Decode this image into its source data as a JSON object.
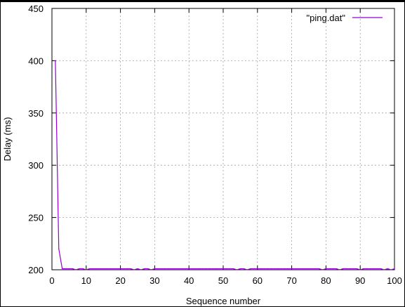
{
  "chart_data": {
    "type": "line",
    "title": "",
    "xlabel": "Sequence number",
    "ylabel": "Delay (ms)",
    "xlim": [
      0,
      100
    ],
    "ylim": [
      200,
      450
    ],
    "xticks": [
      0,
      10,
      20,
      30,
      40,
      50,
      60,
      70,
      80,
      90,
      100
    ],
    "yticks": [
      200,
      250,
      300,
      350,
      400,
      450
    ],
    "grid": true,
    "legend_position": "top-right",
    "colors": {
      "series": "#9400d3",
      "grid": "#a0a0a0",
      "axes": "#000000"
    },
    "series": [
      {
        "name": "\"ping.dat\"",
        "x": [
          1,
          2,
          3,
          4,
          5,
          6,
          7,
          8,
          9,
          10,
          11,
          12,
          13,
          14,
          15,
          16,
          17,
          18,
          19,
          20,
          21,
          22,
          23,
          24,
          25,
          26,
          27,
          28,
          29,
          30,
          31,
          32,
          33,
          34,
          35,
          36,
          37,
          38,
          39,
          40,
          41,
          42,
          43,
          44,
          45,
          46,
          47,
          48,
          49,
          50,
          51,
          52,
          53,
          54,
          55,
          56,
          57,
          58,
          59,
          60,
          61,
          62,
          63,
          64,
          65,
          66,
          67,
          68,
          69,
          70,
          71,
          72,
          73,
          74,
          75,
          76,
          77,
          78,
          79,
          80,
          81,
          82,
          83,
          84,
          85,
          86,
          87,
          88,
          89,
          90,
          91,
          92,
          93,
          94,
          95,
          96,
          97,
          98,
          99,
          100
        ],
        "y": [
          400,
          220,
          201,
          201,
          201,
          201,
          200,
          201,
          201,
          200,
          201,
          201,
          201,
          201,
          201,
          201,
          201,
          201,
          201,
          201,
          201,
          201,
          201,
          200,
          201,
          200,
          201,
          201,
          200,
          201,
          201,
          201,
          201,
          201,
          201,
          201,
          201,
          201,
          201,
          201,
          201,
          201,
          201,
          201,
          201,
          201,
          201,
          201,
          201,
          201,
          201,
          201,
          201,
          200,
          201,
          201,
          200,
          201,
          201,
          201,
          201,
          201,
          201,
          201,
          201,
          201,
          201,
          201,
          201,
          201,
          201,
          201,
          201,
          201,
          201,
          201,
          201,
          201,
          200,
          201,
          201,
          201,
          201,
          200,
          201,
          201,
          201,
          201,
          201,
          200,
          201,
          201,
          201,
          201,
          201,
          201,
          200,
          201,
          200,
          201
        ]
      }
    ]
  }
}
